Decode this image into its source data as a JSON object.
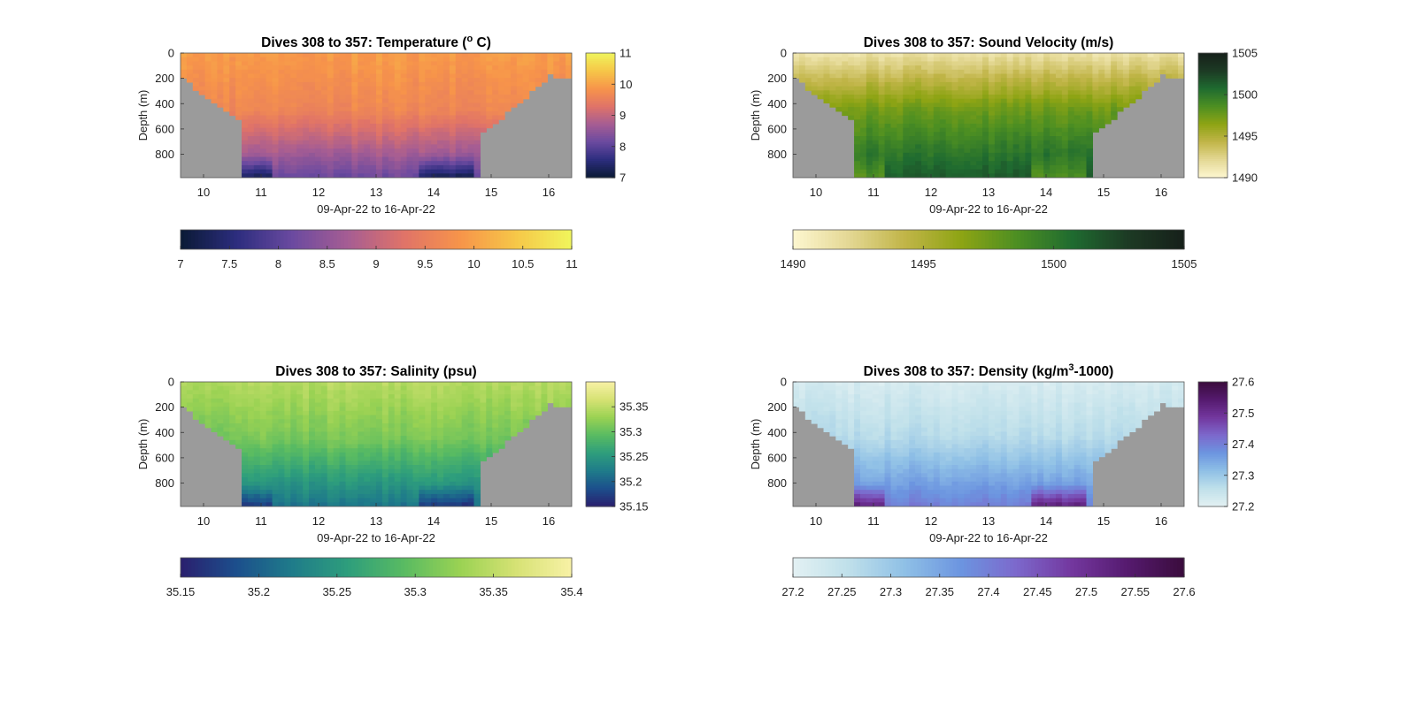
{
  "chart_data": [
    {
      "type": "heatmap",
      "title_text": "Dives 308 to 357: Temperature (",
      "title_sup": "o",
      "title_tail": " C)",
      "xlabel": "09-Apr-22 to 16-Apr-22",
      "ylabel": "Depth (m)",
      "x_ticks": [
        "10",
        "11",
        "12",
        "13",
        "14",
        "15",
        "16"
      ],
      "y_ticks": [
        "0",
        "200",
        "400",
        "600",
        "800"
      ],
      "xlim": [
        9.6,
        16.4
      ],
      "ylim": [
        0,
        985
      ],
      "colormap": [
        "#0a1a35",
        "#2c2d7e",
        "#6b4aa0",
        "#a65d93",
        "#e07368",
        "#f7944a",
        "#f6c748",
        "#f0f55c"
      ],
      "clim": [
        7,
        11
      ],
      "colorbar_ticks": [
        "7",
        "8",
        "9",
        "10",
        "11"
      ],
      "h_colorbar_ticks": [
        "7",
        "7.5",
        "8",
        "8.5",
        "9",
        "9.5",
        "10",
        "10.5",
        "11"
      ],
      "surface_value": 9.95,
      "bottom_value": 8.4,
      "mid_value": 9.65,
      "noise": 0.12,
      "deep_anomaly": -0.9,
      "missing_color": "#9b9b9b"
    },
    {
      "type": "heatmap",
      "title_text": "Dives 308 to 357: Sound Velocity (m/s)",
      "title_sup": "",
      "title_tail": "",
      "xlabel": "09-Apr-22 to 16-Apr-22",
      "ylabel": "Depth (m)",
      "x_ticks": [
        "10",
        "11",
        "12",
        "13",
        "14",
        "15",
        "16"
      ],
      "y_ticks": [
        "0",
        "200",
        "400",
        "600",
        "800"
      ],
      "xlim": [
        9.6,
        16.4
      ],
      "ylim": [
        0,
        985
      ],
      "colormap": [
        "#fdf7d0",
        "#e4d894",
        "#c1b548",
        "#8ea414",
        "#4d8f22",
        "#1f6b30",
        "#1d3a24",
        "#16201a"
      ],
      "clim": [
        1490,
        1505
      ],
      "colorbar_ticks": [
        "1490",
        "1495",
        "1500",
        "1505"
      ],
      "h_colorbar_ticks": [
        "1490",
        "1495",
        "1500",
        "1505"
      ],
      "surface_value": 1491.5,
      "bottom_value": 1500.8,
      "mid_value": 1497.5,
      "noise": 0.5,
      "deep_anomaly": -3.0,
      "missing_color": "#9b9b9b"
    },
    {
      "type": "heatmap",
      "title_text": "Dives 308 to 357: Salinity (psu)",
      "title_sup": "",
      "title_tail": "",
      "xlabel": "09-Apr-22 to 16-Apr-22",
      "ylabel": "Depth (m)",
      "x_ticks": [
        "10",
        "11",
        "12",
        "13",
        "14",
        "15",
        "16"
      ],
      "y_ticks": [
        "0",
        "200",
        "400",
        "600",
        "800"
      ],
      "xlim": [
        9.6,
        16.4
      ],
      "ylim": [
        0,
        985
      ],
      "colormap": [
        "#2a1f6e",
        "#1c4f8c",
        "#1f7c8a",
        "#2e9e7c",
        "#59bb62",
        "#9ad253",
        "#d6e274",
        "#f8f1a6"
      ],
      "clim": [
        35.15,
        35.4
      ],
      "colorbar_ticks": [
        "35.15",
        "35.2",
        "35.25",
        "35.3",
        "35.35"
      ],
      "h_colorbar_ticks": [
        "35.15",
        "35.2",
        "35.25",
        "35.3",
        "35.35",
        "35.4"
      ],
      "surface_value": 35.345,
      "bottom_value": 35.23,
      "mid_value": 35.31,
      "noise": 0.008,
      "deep_anomaly": -0.05,
      "missing_color": "#9b9b9b"
    },
    {
      "type": "heatmap",
      "title_text": "Dives 308 to 357: Density (kg/m",
      "title_sup": "3",
      "title_tail": "-1000)",
      "xlabel": "09-Apr-22 to 16-Apr-22",
      "ylabel": "Depth (m)",
      "x_ticks": [
        "10",
        "11",
        "12",
        "13",
        "14",
        "15",
        "16"
      ],
      "y_ticks": [
        "0",
        "200",
        "400",
        "600",
        "800"
      ],
      "xlim": [
        9.6,
        16.4
      ],
      "ylim": [
        0,
        985
      ],
      "colormap": [
        "#e3f1f3",
        "#bfe0ea",
        "#8fc0e6",
        "#6c95e0",
        "#7c68cc",
        "#73379e",
        "#551a6e",
        "#3a0c3c"
      ],
      "clim": [
        27.2,
        27.6
      ],
      "colorbar_ticks": [
        "27.2",
        "27.3",
        "27.4",
        "27.5",
        "27.6"
      ],
      "h_colorbar_ticks": [
        "27.2",
        "27.25",
        "27.3",
        "27.35",
        "27.4",
        "27.45",
        "27.5",
        "27.55",
        "27.6"
      ],
      "surface_value": 27.22,
      "bottom_value": 27.38,
      "mid_value": 27.27,
      "noise": 0.012,
      "deep_anomaly": 0.13,
      "missing_color": "#9b9b9b"
    }
  ]
}
